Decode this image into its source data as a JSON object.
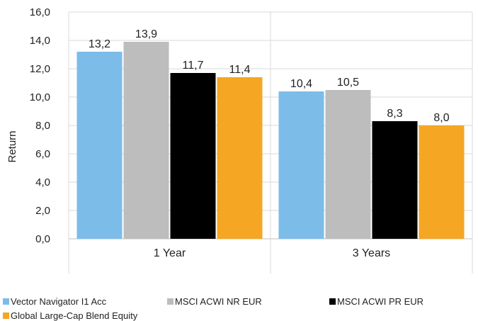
{
  "chart_data": {
    "type": "bar",
    "categories": [
      "1 Year",
      "3 Years"
    ],
    "series": [
      {
        "name": "Vector Navigator I1 Acc",
        "color": "#7cbce9",
        "values": [
          13.2,
          10.4
        ],
        "labels": [
          "13,2",
          "10,4"
        ]
      },
      {
        "name": "MSCI ACWI NR EUR",
        "color": "#bdbdbd",
        "values": [
          13.9,
          10.5
        ],
        "labels": [
          "13,9",
          "10,5"
        ]
      },
      {
        "name": "MSCI ACWI PR EUR",
        "color": "#000000",
        "values": [
          11.7,
          8.3
        ],
        "labels": [
          "11,7",
          "8,3"
        ]
      },
      {
        "name": "Global Large-Cap Blend Equity",
        "color": "#f5a623",
        "values": [
          11.4,
          8.0
        ],
        "labels": [
          "11,4",
          "8,0"
        ]
      }
    ],
    "ylabel": "Return",
    "xlabel": "",
    "ylim": [
      0,
      16
    ],
    "yticks": [
      0,
      2,
      4,
      6,
      8,
      10,
      12,
      14,
      16
    ],
    "ytick_labels": [
      "0,0",
      "2,0",
      "4,0",
      "6,0",
      "8,0",
      "10,0",
      "12,0",
      "14,0",
      "16,0"
    ],
    "grid": true,
    "legend_position": "bottom"
  }
}
